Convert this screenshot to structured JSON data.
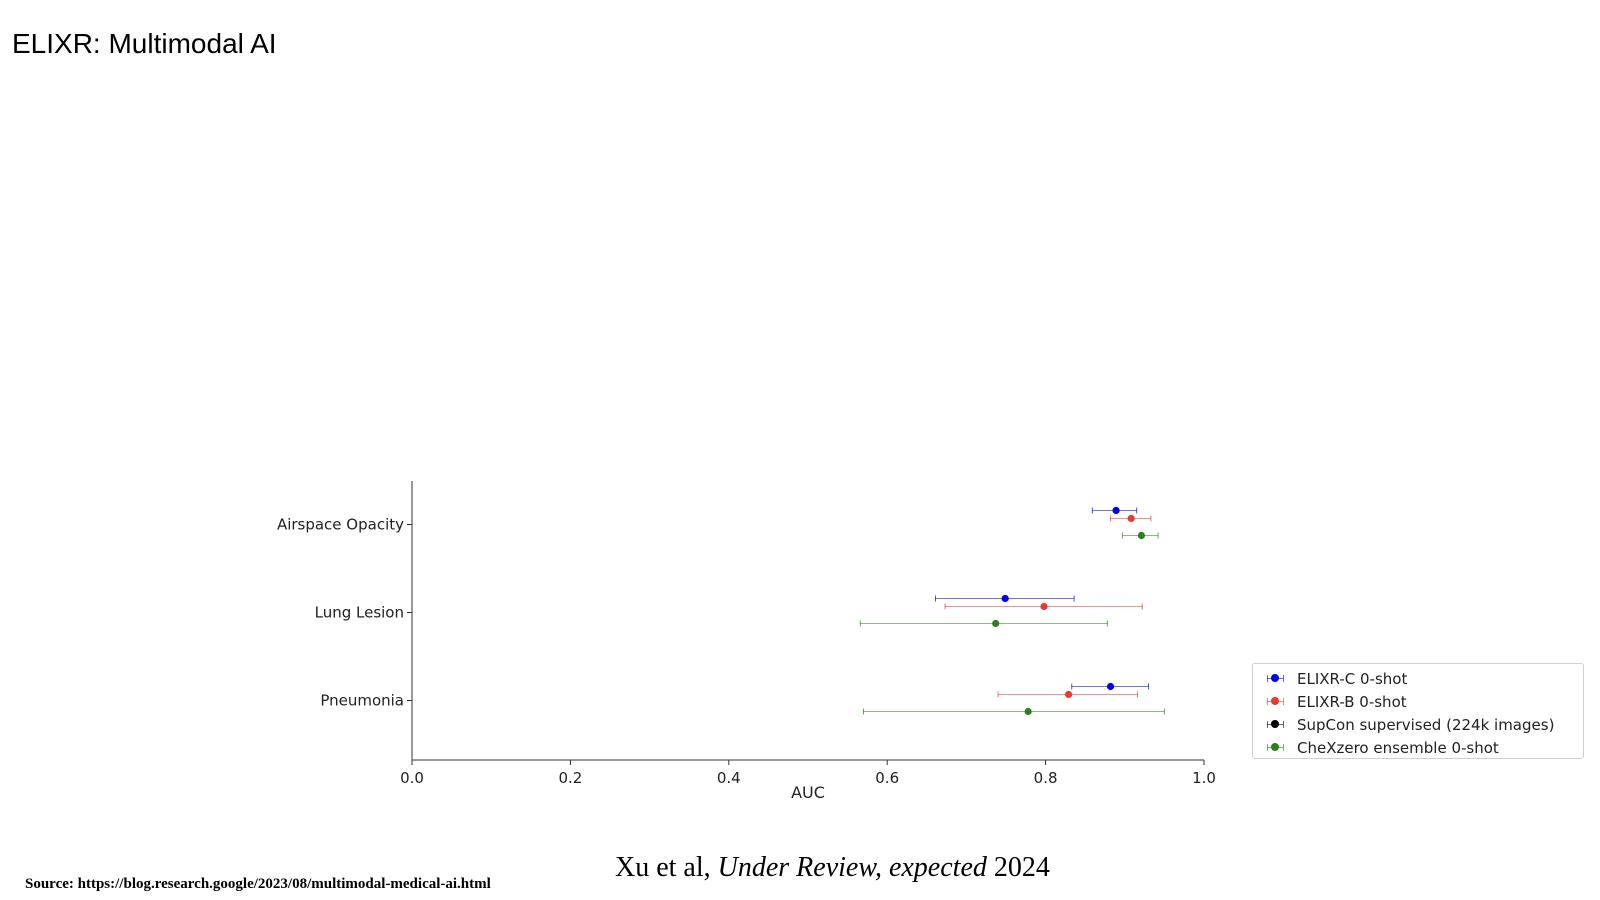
{
  "slide": {
    "title": "ELIXR: Multimodal AI"
  },
  "citation": {
    "authors": "Xu et al",
    "separator": ", ",
    "venue": "Under Review, expected",
    "year": " 2024"
  },
  "source_note": "Source: https://blog.research.google/2023/08/multimodal-medical-ai.html",
  "chart_data": {
    "type": "scatter",
    "orientation": "horizontal-error-bars",
    "categories": [
      "Airspace Opacity",
      "Lung Lesion",
      "Pneumonia"
    ],
    "xlabel": "AUC",
    "ylabel": "",
    "xlim": [
      0.0,
      1.0
    ],
    "xticks": [
      "0.0",
      "0.2",
      "0.4",
      "0.6",
      "0.8",
      "1.0"
    ],
    "grid": false,
    "legend_position": "right",
    "series": [
      {
        "name": "ELIXR-C 0-shot",
        "color": "#0000ee",
        "points": [
          {
            "category": "Airspace Opacity",
            "value": 0.889,
            "low": 0.859,
            "high": 0.915
          },
          {
            "category": "Lung Lesion",
            "value": 0.749,
            "low": 0.661,
            "high": 0.836
          },
          {
            "category": "Pneumonia",
            "value": 0.882,
            "low": 0.833,
            "high": 0.93
          }
        ]
      },
      {
        "name": "ELIXR-B 0-shot",
        "color": "#e8392e",
        "points": [
          {
            "category": "Airspace Opacity",
            "value": 0.908,
            "low": 0.882,
            "high": 0.933
          },
          {
            "category": "Lung Lesion",
            "value": 0.798,
            "low": 0.673,
            "high": 0.922
          },
          {
            "category": "Pneumonia",
            "value": 0.829,
            "low": 0.74,
            "high": 0.916
          }
        ]
      },
      {
        "name": "SupCon supervised (224k images)",
        "color": "#000000",
        "points": []
      },
      {
        "name": "CheXzero ensemble 0-shot",
        "color": "#2e7d1f",
        "points": [
          {
            "category": "Airspace Opacity",
            "value": 0.921,
            "low": 0.897,
            "high": 0.942
          },
          {
            "category": "Lung Lesion",
            "value": 0.737,
            "low": 0.566,
            "high": 0.878
          },
          {
            "category": "Pneumonia",
            "value": 0.778,
            "low": 0.57,
            "high": 0.95
          }
        ]
      }
    ]
  }
}
